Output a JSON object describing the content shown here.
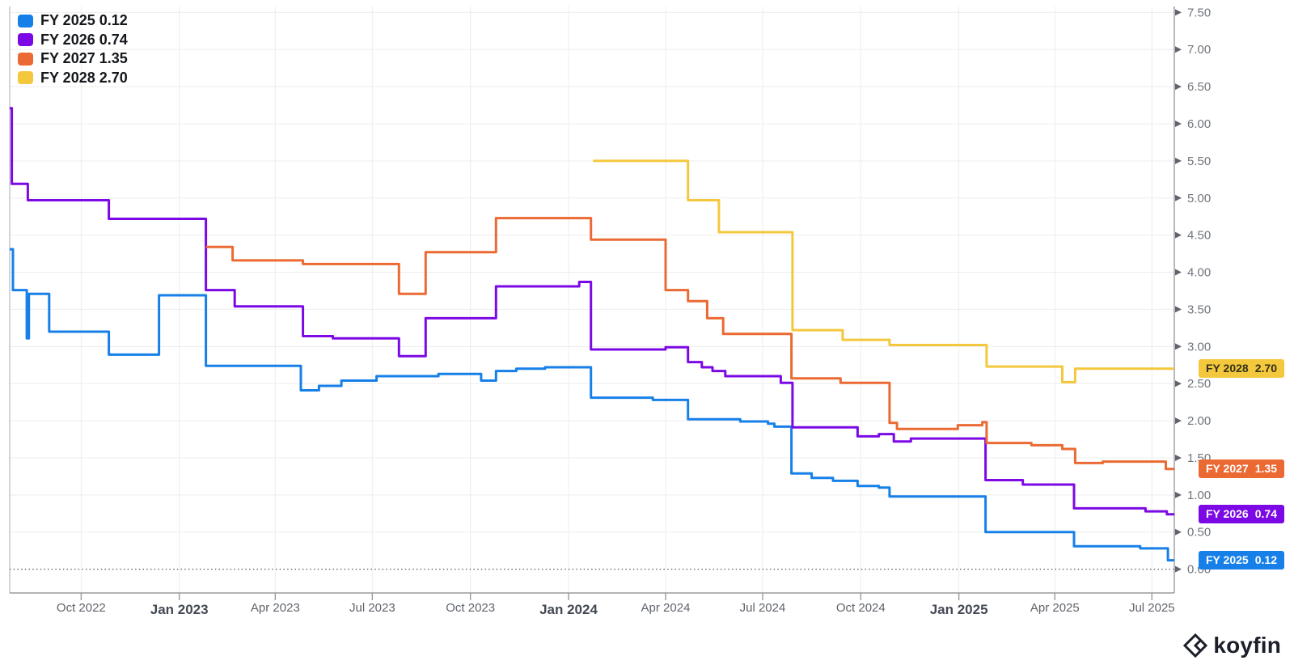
{
  "legend": {
    "items": [
      {
        "text": "FY 2025 0.12"
      },
      {
        "text": "FY 2026 0.74"
      },
      {
        "text": "FY 2027 1.35"
      },
      {
        "text": "FY 2028 2.70"
      }
    ]
  },
  "watermark": {
    "text": "koyfin"
  },
  "chart_data": {
    "type": "line",
    "step": true,
    "title": "",
    "legend_position": "top-left",
    "grid": true,
    "x_domain": [
      "2022-07-26",
      "2025-07-22"
    ],
    "y_domain": [
      -0.32,
      7.58
    ],
    "zero_line": {
      "value": 0.0,
      "style": "dotted"
    },
    "y_axis": {
      "side": "right",
      "ticks": [
        {
          "v": 7.5,
          "label": "7.50"
        },
        {
          "v": 7.0,
          "label": "7.00"
        },
        {
          "v": 6.5,
          "label": "6.50"
        },
        {
          "v": 6.0,
          "label": "6.00"
        },
        {
          "v": 5.5,
          "label": "5.50"
        },
        {
          "v": 5.0,
          "label": "5.00"
        },
        {
          "v": 4.5,
          "label": "4.50"
        },
        {
          "v": 4.0,
          "label": "4.00"
        },
        {
          "v": 3.5,
          "label": "3.50"
        },
        {
          "v": 3.0,
          "label": "3.00"
        },
        {
          "v": 2.5,
          "label": "2.50"
        },
        {
          "v": 2.0,
          "label": "2.00"
        },
        {
          "v": 1.5,
          "label": "1.50"
        },
        {
          "v": 1.0,
          "label": "1.00"
        },
        {
          "v": 0.5,
          "label": "0.50"
        },
        {
          "v": 0.0,
          "label": "0.00"
        }
      ]
    },
    "x_axis": {
      "ticks": [
        {
          "date": "2022-10-01",
          "label": "Oct 2022",
          "bold": false
        },
        {
          "date": "2023-01-01",
          "label": "Jan 2023",
          "bold": true
        },
        {
          "date": "2023-04-01",
          "label": "Apr 2023",
          "bold": false
        },
        {
          "date": "2023-07-01",
          "label": "Jul 2023",
          "bold": false
        },
        {
          "date": "2023-10-01",
          "label": "Oct 2023",
          "bold": false
        },
        {
          "date": "2024-01-01",
          "label": "Jan 2024",
          "bold": true
        },
        {
          "date": "2024-04-01",
          "label": "Apr 2024",
          "bold": false
        },
        {
          "date": "2024-07-01",
          "label": "Jul 2024",
          "bold": false
        },
        {
          "date": "2024-10-01",
          "label": "Oct 2024",
          "bold": false
        },
        {
          "date": "2025-01-01",
          "label": "Jan 2025",
          "bold": true
        },
        {
          "date": "2025-04-01",
          "label": "Apr 2025",
          "bold": false
        },
        {
          "date": "2025-07-01",
          "label": "Jul 2025",
          "bold": false
        }
      ]
    },
    "series": [
      {
        "name": "FY 2025",
        "last_value": "0.12",
        "color": "#1780E8",
        "badge_text_color": "#FFFFFF",
        "points": [
          [
            "2022-07-26",
            4.31
          ],
          [
            "2022-07-29",
            3.76
          ],
          [
            "2022-08-11",
            3.11
          ],
          [
            "2022-08-13",
            3.71
          ],
          [
            "2022-09-01",
            3.2
          ],
          [
            "2022-10-27",
            2.89
          ],
          [
            "2022-12-13",
            3.69
          ],
          [
            "2023-01-26",
            2.74
          ],
          [
            "2023-04-25",
            2.41
          ],
          [
            "2023-05-12",
            2.47
          ],
          [
            "2023-06-02",
            2.54
          ],
          [
            "2023-07-05",
            2.6
          ],
          [
            "2023-09-01",
            2.63
          ],
          [
            "2023-10-11",
            2.54
          ],
          [
            "2023-10-25",
            2.67
          ],
          [
            "2023-11-13",
            2.7
          ],
          [
            "2023-12-10",
            2.72
          ],
          [
            "2024-01-22",
            2.31
          ],
          [
            "2024-03-20",
            2.28
          ],
          [
            "2024-04-22",
            2.02
          ],
          [
            "2024-06-10",
            1.99
          ],
          [
            "2024-07-06",
            1.96
          ],
          [
            "2024-07-12",
            1.92
          ],
          [
            "2024-07-28",
            1.29
          ],
          [
            "2024-08-16",
            1.23
          ],
          [
            "2024-09-05",
            1.19
          ],
          [
            "2024-09-28",
            1.12
          ],
          [
            "2024-10-18",
            1.1
          ],
          [
            "2024-10-28",
            0.98
          ],
          [
            "2025-01-26",
            0.5
          ],
          [
            "2025-04-19",
            0.31
          ],
          [
            "2025-06-20",
            0.28
          ],
          [
            "2025-07-16",
            0.12
          ]
        ]
      },
      {
        "name": "FY 2026",
        "last_value": "0.74",
        "color": "#7C09E5",
        "badge_text_color": "#FFFFFF",
        "points": [
          [
            "2022-07-26",
            6.21
          ],
          [
            "2022-07-28",
            5.19
          ],
          [
            "2022-08-12",
            4.97
          ],
          [
            "2022-10-27",
            4.72
          ],
          [
            "2023-01-26",
            3.76
          ],
          [
            "2023-02-22",
            3.54
          ],
          [
            "2023-04-27",
            3.14
          ],
          [
            "2023-05-25",
            3.11
          ],
          [
            "2023-07-26",
            2.87
          ],
          [
            "2023-08-20",
            3.38
          ],
          [
            "2023-10-25",
            3.81
          ],
          [
            "2024-01-11",
            3.87
          ],
          [
            "2024-01-22",
            2.96
          ],
          [
            "2024-04-01",
            2.99
          ],
          [
            "2024-04-22",
            2.79
          ],
          [
            "2024-05-05",
            2.72
          ],
          [
            "2024-05-15",
            2.67
          ],
          [
            "2024-05-27",
            2.6
          ],
          [
            "2024-07-18",
            2.51
          ],
          [
            "2024-07-29",
            1.91
          ],
          [
            "2024-09-28",
            1.79
          ],
          [
            "2024-10-18",
            1.82
          ],
          [
            "2024-11-01",
            1.72
          ],
          [
            "2024-11-17",
            1.76
          ],
          [
            "2025-01-26",
            1.2
          ],
          [
            "2025-03-02",
            1.14
          ],
          [
            "2025-04-19",
            0.82
          ],
          [
            "2025-06-25",
            0.78
          ],
          [
            "2025-07-15",
            0.74
          ]
        ]
      },
      {
        "name": "FY 2027",
        "last_value": "1.35",
        "color": "#EB6A33",
        "badge_text_color": "#FFFFFF",
        "points": [
          [
            "2023-01-26",
            4.34
          ],
          [
            "2023-02-20",
            4.16
          ],
          [
            "2023-04-27",
            4.11
          ],
          [
            "2023-07-26",
            3.71
          ],
          [
            "2023-08-20",
            4.27
          ],
          [
            "2023-10-25",
            4.73
          ],
          [
            "2024-01-22",
            4.44
          ],
          [
            "2024-04-01",
            3.76
          ],
          [
            "2024-04-22",
            3.61
          ],
          [
            "2024-05-10",
            3.38
          ],
          [
            "2024-05-25",
            3.17
          ],
          [
            "2024-07-28",
            2.57
          ],
          [
            "2024-09-12",
            2.51
          ],
          [
            "2024-10-28",
            1.97
          ],
          [
            "2024-11-04",
            1.89
          ],
          [
            "2024-12-31",
            1.94
          ],
          [
            "2025-01-23",
            1.98
          ],
          [
            "2025-01-27",
            1.7
          ],
          [
            "2025-03-10",
            1.67
          ],
          [
            "2025-04-08",
            1.62
          ],
          [
            "2025-04-20",
            1.43
          ],
          [
            "2025-05-16",
            1.45
          ],
          [
            "2025-07-14",
            1.35
          ]
        ]
      },
      {
        "name": "FY 2028",
        "last_value": "2.70",
        "color": "#F4C83D",
        "badge_text_color": "#33301A",
        "points": [
          [
            "2024-01-24",
            5.5
          ],
          [
            "2024-04-22",
            4.97
          ],
          [
            "2024-05-21",
            4.54
          ],
          [
            "2024-07-29",
            3.22
          ],
          [
            "2024-09-14",
            3.09
          ],
          [
            "2024-10-28",
            3.02
          ],
          [
            "2025-01-27",
            2.73
          ],
          [
            "2025-04-08",
            2.52
          ],
          [
            "2025-04-20",
            2.7
          ]
        ]
      }
    ]
  }
}
